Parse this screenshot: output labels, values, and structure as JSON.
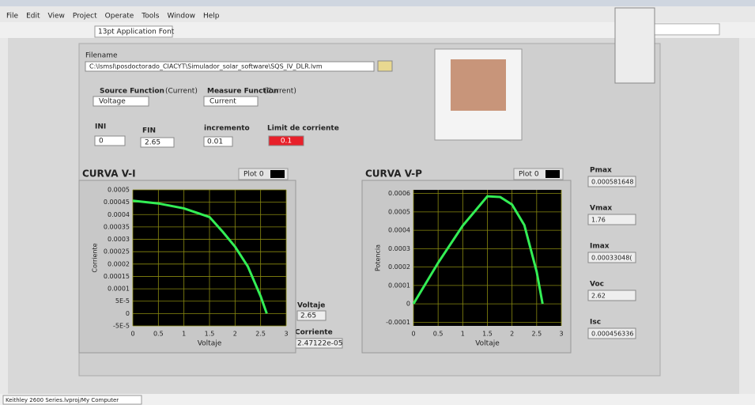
{
  "window": {
    "menu": [
      "File",
      "Edit",
      "View",
      "Project",
      "Operate",
      "Tools",
      "Window",
      "Help"
    ],
    "font_selector": "13pt Application Font",
    "status": "Keithley 2600 Series.lvproj/My Computer"
  },
  "panel": {
    "filename_label": "Filename",
    "filename": "C:\\lsmsl\\posdoctorado_CIACYT\\Simulador_solar_software\\SQS_IV_DLR.lvm",
    "source_label": "Source Function",
    "source_suffix": "(Current)",
    "source_value": "Voltage",
    "measure_label": "Measure Function",
    "measure_suffix": "(Current)",
    "measure_value": "Current",
    "ini_label": "INI",
    "ini": "0",
    "fin_label": "FIN",
    "fin": "2.65",
    "inc_label": "incremento",
    "inc": "0.01",
    "limit_label": "Limit de corriente",
    "limit": "0.1",
    "voltaje_label": "Voltaje",
    "voltaje": "2.65",
    "corriente_label": "Corriente",
    "corriente": "2.47122e-05",
    "results": [
      {
        "label": "Pmax",
        "value": "0.000581648"
      },
      {
        "label": "Vmax",
        "value": "1.76"
      },
      {
        "label": "Imax",
        "value": "0.00033048("
      },
      {
        "label": "Voc",
        "value": "2.62"
      },
      {
        "label": "Isc",
        "value": "0.000456336"
      }
    ]
  },
  "charts": [
    {
      "type": "line",
      "title": "CURVA V-I",
      "legend": "Plot 0",
      "x_label": "Voltaje",
      "y_label": "Corriente",
      "xlim": [
        0,
        3
      ],
      "ylim": [
        -5e-05,
        0.0005
      ],
      "xticks": [
        0,
        0.5,
        1,
        1.5,
        2,
        2.5,
        3
      ],
      "yticks": [
        0.0005,
        0.00045,
        0.0004,
        0.00035,
        0.0003,
        0.00025,
        0.0002,
        0.00015,
        0.0001,
        {
          "value": 5e-05,
          "label": "5E-5"
        },
        0,
        {
          "value": -5e-05,
          "label": "-5E-5"
        }
      ],
      "series": [
        {
          "name": "Plot 0",
          "color": "#33ee55",
          "x": [
            0,
            0.5,
            1,
            1.5,
            1.76,
            2,
            2.25,
            2.5,
            2.62
          ],
          "values": [
            0.000456,
            0.000445,
            0.000425,
            0.00039,
            0.00033,
            0.00027,
            0.00019,
            7e-05,
            0
          ]
        }
      ]
    },
    {
      "type": "line",
      "title": "CURVA V-P",
      "legend": "Plot 0",
      "x_label": "Voltaje",
      "y_label": "Potencia",
      "xlim": [
        0,
        3
      ],
      "ylim": [
        -0.00012,
        0.00062
      ],
      "xticks": [
        0,
        0.5,
        1,
        1.5,
        2,
        2.5,
        3
      ],
      "yticks": [
        0.0006,
        0.0005,
        0.0004,
        0.0003,
        0.0002,
        0.0001,
        0,
        -0.0001
      ],
      "series": [
        {
          "name": "Plot 0",
          "color": "#33ee55",
          "x": [
            0,
            0.5,
            1,
            1.5,
            1.76,
            2,
            2.25,
            2.5,
            2.62
          ],
          "values": [
            0,
            0.000223,
            0.000425,
            0.000585,
            0.000581,
            0.00054,
            0.000428,
            0.000175,
            0
          ]
        }
      ]
    }
  ]
}
